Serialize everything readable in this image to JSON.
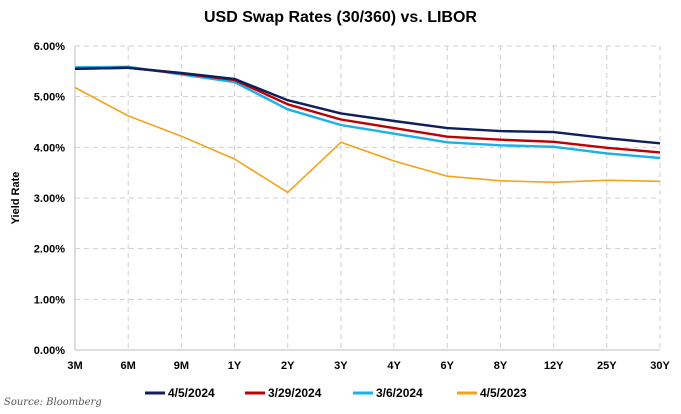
{
  "chart_data": {
    "type": "line",
    "title": "USD Swap Rates (30/360) vs. LIBOR",
    "xlabel": "",
    "ylabel": "Yield Rate",
    "categories": [
      "3M",
      "6M",
      "9M",
      "1Y",
      "2Y",
      "3Y",
      "4Y",
      "6Y",
      "8Y",
      "12Y",
      "25Y",
      "30Y"
    ],
    "y_ticks": [
      "0.00%",
      "1.00%",
      "2.00%",
      "3.00%",
      "4.00%",
      "5.00%",
      "6.00%"
    ],
    "ylim": [
      0,
      6
    ],
    "grid": true,
    "legend_position": "bottom",
    "series": [
      {
        "name": "4/5/2024",
        "color": "#0d1f5c",
        "values": [
          5.55,
          5.57,
          5.47,
          5.35,
          4.93,
          4.67,
          4.52,
          4.38,
          4.32,
          4.3,
          4.18,
          4.08
        ]
      },
      {
        "name": "3/29/2024",
        "color": "#c00000",
        "values": [
          5.55,
          5.57,
          5.46,
          5.33,
          4.85,
          4.55,
          4.38,
          4.21,
          4.15,
          4.11,
          3.99,
          3.9
        ]
      },
      {
        "name": "3/6/2024",
        "color": "#1ab0e8",
        "values": [
          5.58,
          5.59,
          5.44,
          5.29,
          4.75,
          4.44,
          4.27,
          4.1,
          4.04,
          4.01,
          3.88,
          3.79
        ]
      },
      {
        "name": "4/5/2023",
        "color": "#f5a31a",
        "values": [
          5.18,
          4.62,
          4.22,
          3.77,
          3.11,
          4.1,
          3.73,
          3.43,
          3.34,
          3.31,
          3.35,
          3.33
        ]
      }
    ]
  },
  "source_note": "Source: Bloomberg"
}
